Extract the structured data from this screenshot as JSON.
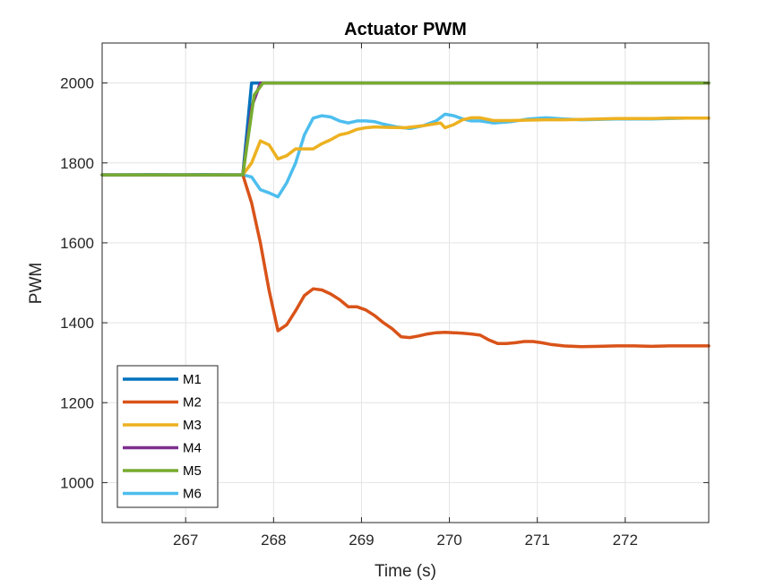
{
  "chart_data": {
    "type": "line",
    "title": "Actuator PWM",
    "xlabel": "Time (s)",
    "ylabel": "PWM",
    "xlim": [
      266.05,
      272.95
    ],
    "ylim": [
      900,
      2100
    ],
    "xticks": [
      267,
      268,
      269,
      270,
      271,
      272
    ],
    "yticks": [
      1000,
      1200,
      1400,
      1600,
      1800,
      2000
    ],
    "grid": true,
    "legend_position": "bottom-left",
    "colors": {
      "M1": "#0072BD",
      "M2": "#D95319",
      "M3": "#EDB120",
      "M4": "#7E2F8E",
      "M5": "#77AC30",
      "M6": "#4DBEEE"
    },
    "series": [
      {
        "name": "M1",
        "x": [
          266.05,
          267.65,
          267.75,
          267.85,
          272.95
        ],
        "y": [
          1770,
          1770,
          2000,
          2000,
          2000
        ]
      },
      {
        "name": "M2",
        "x": [
          267.65,
          267.75,
          267.85,
          267.95,
          268.05,
          268.15,
          268.25,
          268.35,
          268.45,
          268.55,
          268.65,
          268.75,
          268.85,
          268.95,
          269.05,
          269.15,
          269.25,
          269.35,
          269.45,
          269.55,
          269.65,
          269.75,
          269.85,
          269.95,
          270.05,
          270.15,
          270.25,
          270.35,
          270.45,
          270.55,
          270.65,
          270.75,
          270.85,
          270.95,
          271.05,
          271.15,
          271.3,
          271.5,
          271.7,
          271.9,
          272.1,
          272.3,
          272.5,
          272.7,
          272.95
        ],
        "y": [
          1770,
          1700,
          1600,
          1480,
          1380,
          1395,
          1430,
          1468,
          1485,
          1482,
          1472,
          1458,
          1440,
          1440,
          1432,
          1418,
          1400,
          1385,
          1365,
          1363,
          1367,
          1372,
          1375,
          1376,
          1375,
          1374,
          1372,
          1369,
          1357,
          1348,
          1348,
          1350,
          1353,
          1353,
          1350,
          1346,
          1342,
          1340,
          1341,
          1342,
          1342,
          1341,
          1342,
          1342,
          1342
        ]
      },
      {
        "name": "M3",
        "x": [
          267.65,
          267.75,
          267.85,
          267.95,
          268.05,
          268.15,
          268.25,
          268.35,
          268.45,
          268.55,
          268.65,
          268.75,
          268.85,
          268.95,
          269.05,
          269.15,
          269.3,
          269.5,
          269.7,
          269.9,
          269.95,
          270.05,
          270.15,
          270.25,
          270.35,
          270.5,
          270.7,
          270.9,
          271.1,
          271.3,
          271.5,
          271.7,
          271.9,
          272.1,
          272.3,
          272.5,
          272.7,
          272.95
        ],
        "y": [
          1770,
          1800,
          1855,
          1845,
          1810,
          1818,
          1835,
          1835,
          1835,
          1848,
          1858,
          1870,
          1875,
          1884,
          1888,
          1890,
          1889,
          1888,
          1893,
          1900,
          1888,
          1896,
          1908,
          1913,
          1913,
          1906,
          1906,
          1907,
          1908,
          1908,
          1909,
          1910,
          1911,
          1911,
          1911,
          1912,
          1912,
          1912
        ]
      },
      {
        "name": "M4",
        "x": [
          266.05,
          267.65,
          267.75,
          267.85,
          272.95
        ],
        "y": [
          1770,
          1770,
          1940,
          2000,
          2000
        ]
      },
      {
        "name": "M5",
        "x": [
          266.05,
          267.65,
          267.78,
          267.88,
          272.95
        ],
        "y": [
          1770,
          1770,
          1970,
          2000,
          2000
        ]
      },
      {
        "name": "M6",
        "x": [
          266.05,
          266.3,
          266.6,
          266.9,
          267.2,
          267.5,
          267.65,
          267.75,
          267.85,
          267.95,
          268.05,
          268.15,
          268.25,
          268.35,
          268.45,
          268.55,
          268.65,
          268.75,
          268.85,
          268.95,
          269.05,
          269.15,
          269.25,
          269.4,
          269.55,
          269.7,
          269.85,
          269.95,
          270.05,
          270.15,
          270.25,
          270.35,
          270.5,
          270.7,
          270.9,
          271.1,
          271.3,
          271.5,
          271.7,
          271.9,
          272.1,
          272.3,
          272.5,
          272.7,
          272.95
        ],
        "y": [
          1770,
          1770,
          1771,
          1770,
          1771,
          1770,
          1770,
          1765,
          1733,
          1725,
          1715,
          1750,
          1800,
          1870,
          1912,
          1918,
          1915,
          1905,
          1900,
          1905,
          1905,
          1903,
          1897,
          1890,
          1886,
          1893,
          1905,
          1922,
          1918,
          1910,
          1905,
          1905,
          1900,
          1903,
          1910,
          1913,
          1910,
          1908,
          1909,
          1910,
          1910,
          1910,
          1911,
          1912,
          1912
        ]
      }
    ]
  }
}
